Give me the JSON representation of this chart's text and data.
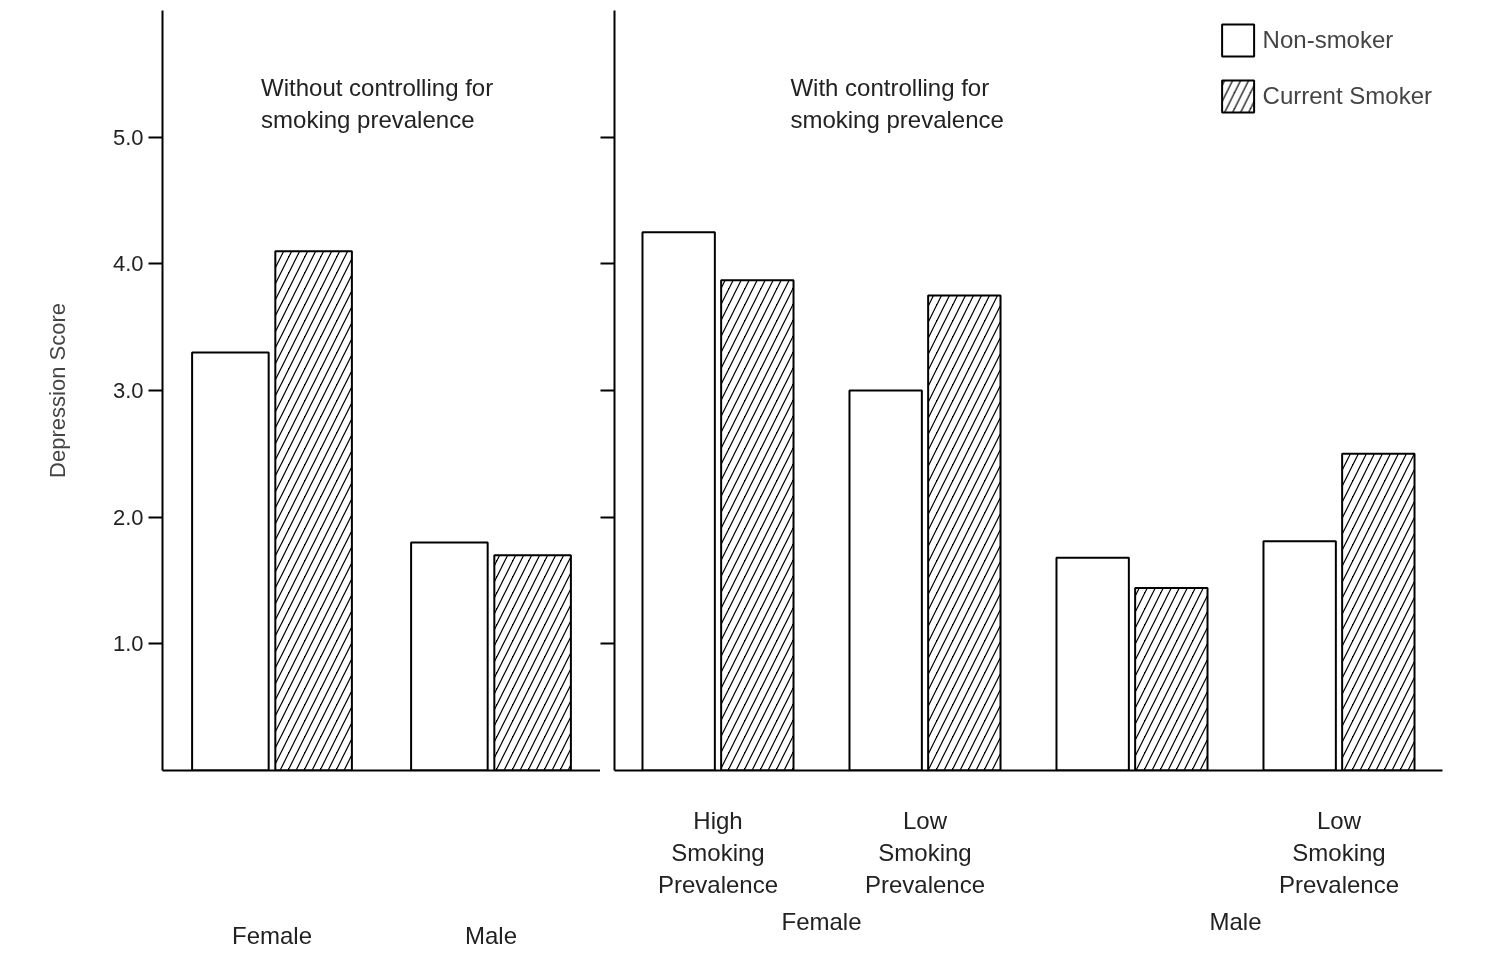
{
  "chart_data": [
    {
      "type": "bar",
      "title": "Without controlling for smoking prevalence",
      "ylabel": "Depression Score",
      "categories": [
        "Female",
        "Male"
      ],
      "series": [
        {
          "color": "#ffffff",
          "values": [
            3.3,
            1.8
          ]
        },
        {
          "color": "#000000",
          "values": [
            4.1,
            1.7
          ]
        }
      ],
      "ylim": [
        0,
        6
      ],
      "yticks": [
        {
          "value": 1,
          "label": "1.0"
        },
        {
          "value": 2,
          "label": "2.0"
        },
        {
          "value": 3,
          "label": "3.0"
        },
        {
          "value": 4,
          "label": "4.0"
        },
        {
          "value": 5,
          "label": "5.0"
        }
      ],
      "grid": false,
      "legend": false
    },
    {
      "type": "bar",
      "title": "With controlling for smoking prevalence",
      "categories": [
        "High Smoking Prevalence",
        "Low Smoking Prevalence",
        null,
        "Low Smoking Prevalence"
      ],
      "series": [
        {
          "name": "Non-smoker",
          "color": "#ffffff",
          "values": [
            4.25,
            3.0,
            1.68,
            1.81
          ]
        },
        {
          "name": "Current Smoker",
          "color": "#000000",
          "values": [
            3.87,
            3.75,
            1.44,
            2.5
          ]
        }
      ],
      "annotations": [
        "Female",
        "Male"
      ],
      "ylim": [
        0,
        6
      ],
      "yticks": [
        {
          "value": 1,
          "label": null
        },
        {
          "value": 2,
          "label": null
        },
        {
          "value": 3,
          "label": null
        },
        {
          "value": 4,
          "label": null
        },
        {
          "value": 5,
          "label": null
        }
      ],
      "tick_labels": "x",
      "grid": false,
      "legend": "top right"
    }
  ]
}
